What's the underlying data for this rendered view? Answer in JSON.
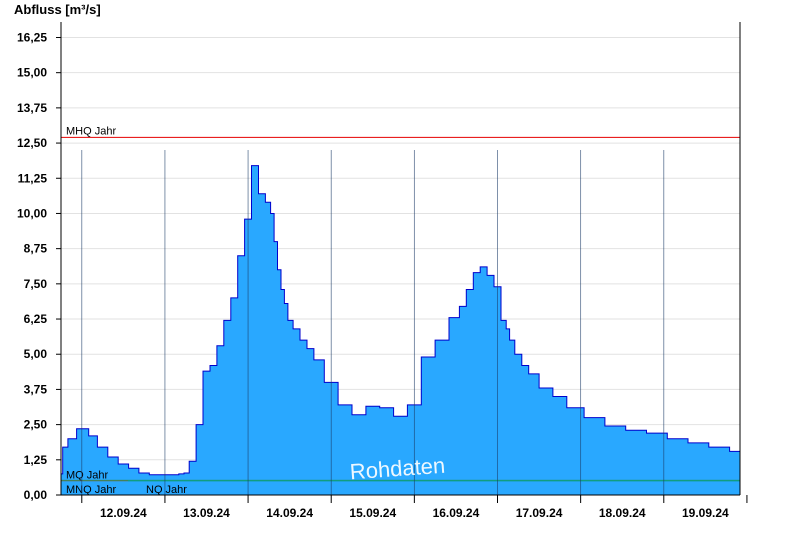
{
  "chart_data": {
    "type": "area",
    "ylabel": "Abfluss [m³/s]",
    "ylim": [
      0,
      16.8
    ],
    "yticks": [
      "0,00",
      "1,25",
      "2,50",
      "3,75",
      "5,00",
      "6,25",
      "7,50",
      "8,75",
      "10,00",
      "11,25",
      "12,50",
      "13,75",
      "15,00",
      "16,25"
    ],
    "ytick_values": [
      0,
      1.25,
      2.5,
      3.75,
      5.0,
      6.25,
      7.5,
      8.75,
      10.0,
      11.25,
      12.5,
      13.75,
      15.0,
      16.25
    ],
    "xlim": [
      "2024-09-11 18:00",
      "2024-09-19 22:00"
    ],
    "x_date_labels": [
      "12.09.24",
      "13.09.24",
      "14.09.24",
      "15.09.24",
      "16.09.24",
      "17.09.24",
      "18.09.24",
      "19.09.24"
    ],
    "x_date_midnights": [
      "2024-09-12 00:00",
      "2024-09-13 00:00",
      "2024-09-14 00:00",
      "2024-09-15 00:00",
      "2024-09-16 00:00",
      "2024-09-17 00:00",
      "2024-09-18 00:00",
      "2024-09-19 00:00",
      "2024-09-20 00:00"
    ],
    "grid": true,
    "series": [
      {
        "x": [
          "2024-09-11 18:00",
          "2024-09-11 19:00",
          "2024-09-11 21:00",
          "2024-09-12 00:00",
          "2024-09-12 01:00",
          "2024-09-12 03:00",
          "2024-09-12 06:00",
          "2024-09-12 09:00",
          "2024-09-12 12:00",
          "2024-09-12 15:00",
          "2024-09-12 18:00",
          "2024-09-12 21:00",
          "2024-09-13 00:00",
          "2024-09-13 03:00",
          "2024-09-13 05:00",
          "2024-09-13 06:00",
          "2024-09-13 08:00",
          "2024-09-13 10:00",
          "2024-09-13 12:00",
          "2024-09-13 14:00",
          "2024-09-13 16:00",
          "2024-09-13 18:00",
          "2024-09-13 20:00",
          "2024-09-13 22:00",
          "2024-09-14 00:00",
          "2024-09-14 02:00",
          "2024-09-14 04:00",
          "2024-09-14 06:00",
          "2024-09-14 07:00",
          "2024-09-14 08:00",
          "2024-09-14 09:00",
          "2024-09-14 10:00",
          "2024-09-14 11:00",
          "2024-09-14 12:00",
          "2024-09-14 14:00",
          "2024-09-14 16:00",
          "2024-09-14 18:00",
          "2024-09-14 20:00",
          "2024-09-15 00:00",
          "2024-09-15 04:00",
          "2024-09-15 08:00",
          "2024-09-15 12:00",
          "2024-09-15 16:00",
          "2024-09-15 20:00",
          "2024-09-16 00:00",
          "2024-09-16 04:00",
          "2024-09-16 08:00",
          "2024-09-16 12:00",
          "2024-09-16 14:00",
          "2024-09-16 16:00",
          "2024-09-16 18:00",
          "2024-09-16 20:00",
          "2024-09-16 22:00",
          "2024-09-17 00:00",
          "2024-09-17 02:00",
          "2024-09-17 03:00",
          "2024-09-17 04:00",
          "2024-09-17 06:00",
          "2024-09-17 08:00",
          "2024-09-17 10:00",
          "2024-09-17 14:00",
          "2024-09-17 18:00",
          "2024-09-17 22:00",
          "2024-09-18 04:00",
          "2024-09-18 10:00",
          "2024-09-18 16:00",
          "2024-09-18 22:00",
          "2024-09-19 04:00",
          "2024-09-19 10:00",
          "2024-09-19 16:00",
          "2024-09-19 22:00"
        ],
        "y": [
          0.75,
          1.7,
          2.0,
          2.35,
          2.35,
          2.1,
          1.7,
          1.35,
          1.1,
          0.95,
          0.78,
          0.72,
          0.72,
          0.72,
          0.75,
          0.78,
          1.2,
          2.5,
          4.4,
          4.6,
          5.3,
          6.2,
          7.0,
          8.5,
          9.8,
          11.7,
          10.7,
          10.4,
          10.0,
          9.0,
          8.0,
          7.3,
          6.8,
          6.2,
          5.9,
          5.5,
          5.2,
          4.8,
          4.0,
          3.2,
          2.85,
          3.15,
          3.1,
          2.8,
          3.2,
          4.9,
          5.5,
          6.3,
          6.7,
          7.3,
          7.9,
          8.1,
          7.8,
          7.4,
          6.2,
          5.9,
          5.5,
          5.0,
          4.6,
          4.3,
          3.8,
          3.5,
          3.1,
          2.75,
          2.45,
          2.3,
          2.2,
          2.0,
          1.85,
          1.7,
          1.55
        ]
      }
    ],
    "reference_lines": [
      {
        "label": "MHQ Jahr",
        "value": 12.7,
        "color": "#e60000"
      },
      {
        "label": "MQ Jahr",
        "value": 0.52,
        "color": "#228b22"
      },
      {
        "label": "MNQ Jahr",
        "value": 0.5,
        "color": "#5a7d7d"
      },
      {
        "label": "NQ Jahr",
        "value": 0.5,
        "color": "#00aaaa"
      }
    ],
    "watermark": "Rohdaten",
    "colors": {
      "fill": "#29a8ff",
      "stroke": "#0000cc",
      "grid": "#e2e2e2",
      "axis": "#000000"
    }
  }
}
